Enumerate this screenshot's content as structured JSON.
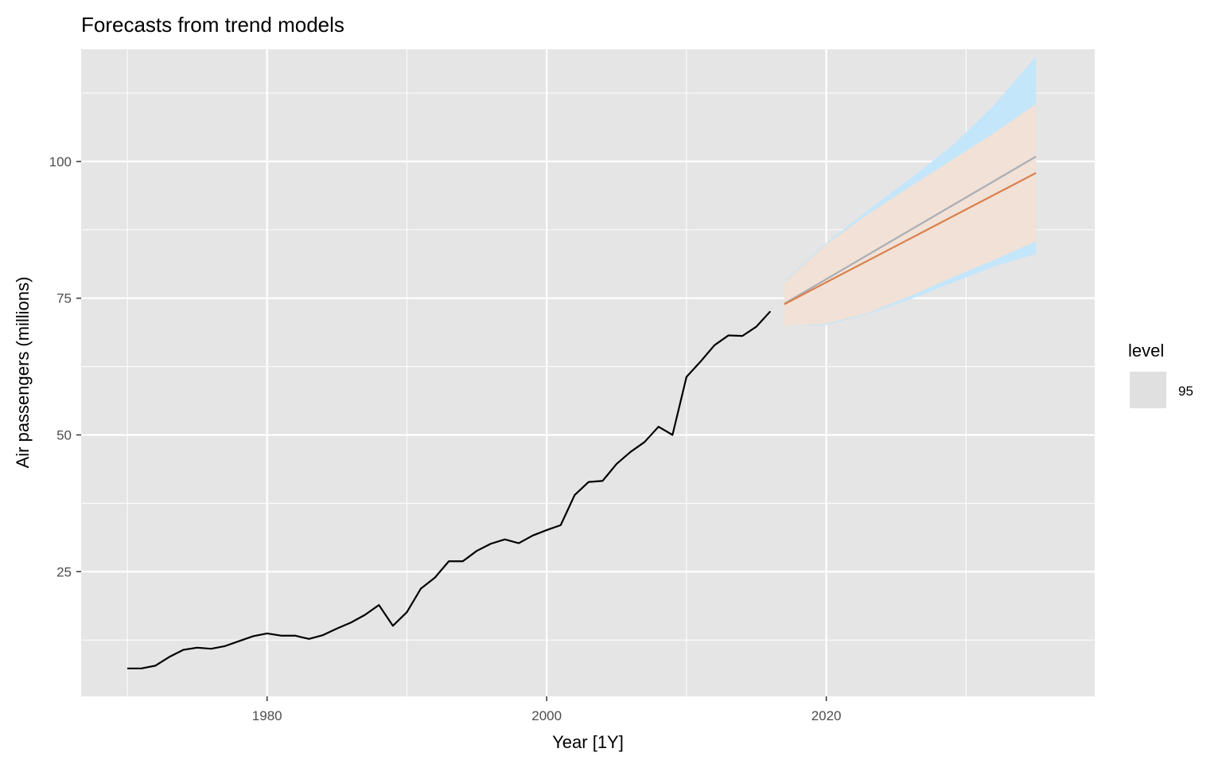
{
  "chart_data": {
    "type": "line",
    "title": "Forecasts from trend models",
    "xlabel": "Year [1Y]",
    "ylabel": "Air passengers (millions)",
    "xlim": [
      1966.7,
      2039.2
    ],
    "ylim": [
      2.2,
      120.5
    ],
    "x_ticks": [
      1980,
      2000,
      2020
    ],
    "y_ticks": [
      25,
      50,
      75,
      100
    ],
    "grid": true,
    "legend": {
      "title": "level",
      "items": [
        "95"
      ],
      "position": "right"
    },
    "colors": {
      "panel": "#e5e5e5",
      "grid": "#ffffff",
      "history": "#000000",
      "forecast_a": "#d9804c",
      "forecast_b": "#a9adb3",
      "interval_a": "#f1e1d6",
      "interval_b": "#c4e6fb",
      "legend_key": "#e0e0e0"
    },
    "history": {
      "x": [
        1970,
        1971,
        1972,
        1973,
        1974,
        1975,
        1976,
        1977,
        1978,
        1979,
        1980,
        1981,
        1982,
        1983,
        1984,
        1985,
        1986,
        1987,
        1988,
        1989,
        1990,
        1991,
        1992,
        1993,
        1994,
        1995,
        1996,
        1997,
        1998,
        1999,
        2000,
        2001,
        2002,
        2003,
        2004,
        2005,
        2006,
        2007,
        2008,
        2009,
        2010,
        2011,
        2012,
        2013,
        2014,
        2015,
        2016
      ],
      "y": [
        7.3,
        7.3,
        7.8,
        9.4,
        10.7,
        11.1,
        10.9,
        11.4,
        12.3,
        13.2,
        13.7,
        13.3,
        13.3,
        12.7,
        13.4,
        14.6,
        15.7,
        17.1,
        18.9,
        15.1,
        17.6,
        21.9,
        23.9,
        26.9,
        26.9,
        28.8,
        30.1,
        30.9,
        30.2,
        31.6,
        32.6,
        33.5,
        39.0,
        41.4,
        41.6,
        44.7,
        46.9,
        48.7,
        51.5,
        50.0,
        60.6,
        63.4,
        66.4,
        68.2,
        68.1,
        69.8,
        72.6
      ]
    },
    "forecasts": [
      {
        "x": [
          2017,
          2035
        ],
        "y": [
          74.0,
          100.9
        ],
        "lower": [
          [
            2017,
            69.9
          ],
          [
            2020,
            70.1
          ],
          [
            2023,
            72.1
          ],
          [
            2026,
            74.8
          ],
          [
            2029,
            77.8
          ],
          [
            2032,
            80.8
          ],
          [
            2035,
            83.1
          ]
        ],
        "upper": [
          [
            2017,
            78.1
          ],
          [
            2020,
            85.1
          ],
          [
            2023,
            91.1
          ],
          [
            2026,
            96.9
          ],
          [
            2029,
            102.9
          ],
          [
            2032,
            110.3
          ],
          [
            2035,
            119.2
          ]
        ]
      },
      {
        "x": [
          2017,
          2035
        ],
        "y": [
          73.9,
          97.9
        ],
        "lower": [
          [
            2017,
            69.9
          ],
          [
            2020,
            70.3
          ],
          [
            2023,
            72.3
          ],
          [
            2026,
            75.4
          ],
          [
            2029,
            78.8
          ],
          [
            2032,
            82.0
          ],
          [
            2035,
            85.4
          ]
        ],
        "upper": [
          [
            2017,
            77.9
          ],
          [
            2020,
            84.9
          ],
          [
            2023,
            90.4
          ],
          [
            2026,
            95.4
          ],
          [
            2029,
            100.3
          ],
          [
            2032,
            105.2
          ],
          [
            2035,
            110.5
          ]
        ]
      }
    ]
  }
}
